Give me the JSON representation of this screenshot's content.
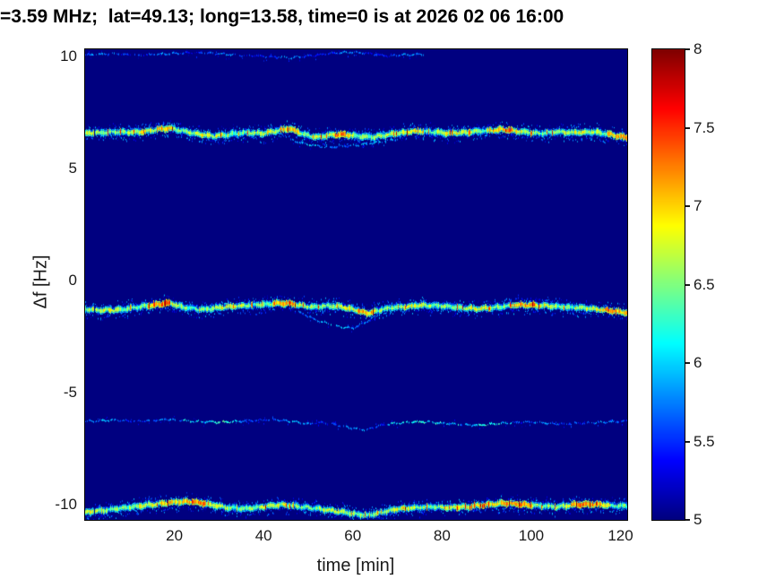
{
  "chart_data": {
    "type": "heatmap",
    "title": "=3.59 MHz;  lat=49.13; long=13.58, time=0 is at 2026 02 06 16:00",
    "xlabel": "time [min]",
    "ylabel": "Δf [Hz]",
    "xlim": [
      0,
      121.5
    ],
    "ylim": [
      -10.7,
      10.3
    ],
    "xticks": [
      20,
      40,
      60,
      80,
      100,
      120
    ],
    "yticks": [
      10,
      5,
      0,
      -5,
      -10
    ],
    "grid": false,
    "background_value": 5.0,
    "colorbar": {
      "clim": [
        5,
        8
      ],
      "ticks": [
        8,
        7.5,
        7,
        6.5,
        6,
        5.5,
        5
      ],
      "colormap": "jet",
      "position": "right"
    },
    "traces": [
      {
        "name": "doppler-trace-plus10Hz-faint",
        "style": "faint",
        "base": 5.6,
        "var": 0.45,
        "gap": 0.3,
        "points": [
          [
            0,
            10.05
          ],
          [
            6,
            10.1
          ],
          [
            12,
            10.03
          ],
          [
            18,
            10.1
          ],
          [
            24,
            10.15
          ],
          [
            30,
            10.1
          ],
          [
            36,
            10.02
          ],
          [
            42,
            9.96
          ],
          [
            46,
            9.92
          ],
          [
            50,
            10.0
          ],
          [
            55,
            10.12
          ],
          [
            60,
            10.18
          ],
          [
            64,
            10.1
          ],
          [
            68,
            10.0
          ],
          [
            72,
            10.05
          ],
          [
            76,
            10.08
          ]
        ]
      },
      {
        "name": "doppler-trace-plus6.5Hz-main",
        "style": "strong",
        "base": 6.55,
        "var": 0.7,
        "gap": 0,
        "hot": [
          [
            16,
            20
          ],
          [
            44,
            48
          ],
          [
            56,
            60
          ],
          [
            72,
            76
          ],
          [
            90,
            96
          ],
          [
            117,
            121.5
          ]
        ],
        "hot_boost": 0.38,
        "points": [
          [
            0,
            6.55
          ],
          [
            4,
            6.6
          ],
          [
            8,
            6.62
          ],
          [
            12,
            6.6
          ],
          [
            16,
            6.72
          ],
          [
            19,
            6.78
          ],
          [
            22,
            6.65
          ],
          [
            26,
            6.5
          ],
          [
            29,
            6.42
          ],
          [
            32,
            6.5
          ],
          [
            36,
            6.58
          ],
          [
            40,
            6.55
          ],
          [
            44,
            6.72
          ],
          [
            46,
            6.75
          ],
          [
            49,
            6.5
          ],
          [
            52,
            6.38
          ],
          [
            55,
            6.48
          ],
          [
            58,
            6.5
          ],
          [
            61,
            6.42
          ],
          [
            64,
            6.38
          ],
          [
            67,
            6.45
          ],
          [
            70,
            6.55
          ],
          [
            74,
            6.65
          ],
          [
            78,
            6.62
          ],
          [
            82,
            6.55
          ],
          [
            86,
            6.6
          ],
          [
            90,
            6.68
          ],
          [
            94,
            6.72
          ],
          [
            98,
            6.62
          ],
          [
            102,
            6.55
          ],
          [
            106,
            6.62
          ],
          [
            110,
            6.58
          ],
          [
            114,
            6.62
          ],
          [
            118,
            6.5
          ],
          [
            121.5,
            6.35
          ]
        ]
      },
      {
        "name": "doppler-branch-plus6Hz-faint",
        "style": "faint",
        "base": 5.8,
        "var": 0.5,
        "gap": 0.3,
        "points": [
          [
            46,
            6.25
          ],
          [
            50,
            6.05
          ],
          [
            54,
            5.92
          ],
          [
            58,
            5.98
          ],
          [
            62,
            6.05
          ],
          [
            66,
            6.18
          ],
          [
            70,
            6.3
          ]
        ]
      },
      {
        "name": "doppler-trace-minus1.2Hz-main",
        "style": "strong",
        "base": 6.55,
        "var": 0.7,
        "gap": 0,
        "hot": [
          [
            14,
            19
          ],
          [
            42,
            47
          ],
          [
            61,
            65
          ],
          [
            95,
            101
          ],
          [
            116,
            121.5
          ]
        ],
        "hot_boost": 0.38,
        "points": [
          [
            0,
            -1.3
          ],
          [
            4,
            -1.35
          ],
          [
            8,
            -1.32
          ],
          [
            12,
            -1.2
          ],
          [
            16,
            -1.08
          ],
          [
            19,
            -1.02
          ],
          [
            22,
            -1.22
          ],
          [
            26,
            -1.32
          ],
          [
            30,
            -1.22
          ],
          [
            34,
            -1.15
          ],
          [
            38,
            -1.1
          ],
          [
            42,
            -1.05
          ],
          [
            45,
            -1.02
          ],
          [
            48,
            -1.12
          ],
          [
            51,
            -1.2
          ],
          [
            54,
            -1.15
          ],
          [
            57,
            -1.18
          ],
          [
            60,
            -1.3
          ],
          [
            63,
            -1.48
          ],
          [
            66,
            -1.35
          ],
          [
            69,
            -1.22
          ],
          [
            72,
            -1.18
          ],
          [
            76,
            -1.12
          ],
          [
            80,
            -1.15
          ],
          [
            84,
            -1.22
          ],
          [
            88,
            -1.28
          ],
          [
            92,
            -1.22
          ],
          [
            96,
            -1.12
          ],
          [
            100,
            -1.1
          ],
          [
            104,
            -1.15
          ],
          [
            108,
            -1.2
          ],
          [
            112,
            -1.25
          ],
          [
            116,
            -1.32
          ],
          [
            121.5,
            -1.45
          ]
        ]
      },
      {
        "name": "doppler-branch-minus2Hz-faint",
        "style": "faint",
        "base": 5.8,
        "var": 0.5,
        "gap": 0.3,
        "points": [
          [
            48,
            -1.45
          ],
          [
            52,
            -1.8
          ],
          [
            56,
            -2.05
          ],
          [
            60,
            -2.15
          ],
          [
            63,
            -1.85
          ],
          [
            66,
            -1.5
          ]
        ]
      },
      {
        "name": "doppler-fuzz-minus0.8Hz-faint",
        "style": "faint",
        "base": 5.5,
        "var": 0.4,
        "gap": 0.5,
        "points": [
          [
            94,
            -0.9
          ],
          [
            98,
            -0.82
          ],
          [
            102,
            -0.88
          ],
          [
            105,
            -0.95
          ]
        ]
      },
      {
        "name": "doppler-trace-minus6.3Hz-faint",
        "style": "faint",
        "base": 5.65,
        "var": 0.5,
        "gap": 0.25,
        "hot": [
          [
            22,
            34
          ],
          [
            68,
            84
          ],
          [
            88,
            96
          ]
        ],
        "hot_boost": 0.3,
        "points": [
          [
            0,
            -6.3
          ],
          [
            6,
            -6.25
          ],
          [
            12,
            -6.3
          ],
          [
            18,
            -6.22
          ],
          [
            24,
            -6.3
          ],
          [
            30,
            -6.35
          ],
          [
            36,
            -6.28
          ],
          [
            42,
            -6.22
          ],
          [
            46,
            -6.3
          ],
          [
            50,
            -6.42
          ],
          [
            53,
            -6.35
          ],
          [
            56,
            -6.45
          ],
          [
            60,
            -6.62
          ],
          [
            63,
            -6.68
          ],
          [
            66,
            -6.5
          ],
          [
            70,
            -6.38
          ],
          [
            76,
            -6.32
          ],
          [
            82,
            -6.42
          ],
          [
            88,
            -6.48
          ],
          [
            94,
            -6.38
          ],
          [
            100,
            -6.32
          ],
          [
            106,
            -6.42
          ],
          [
            112,
            -6.38
          ],
          [
            118,
            -6.32
          ],
          [
            121.5,
            -6.3
          ]
        ]
      },
      {
        "name": "doppler-trace-minus10Hz-main",
        "style": "strong",
        "base": 6.55,
        "var": 0.7,
        "gap": 0,
        "hot": [
          [
            17,
            27
          ],
          [
            87,
            100
          ],
          [
            109,
            118
          ]
        ],
        "hot_boost": 0.38,
        "points": [
          [
            0,
            -10.35
          ],
          [
            4,
            -10.28
          ],
          [
            8,
            -10.18
          ],
          [
            12,
            -10.08
          ],
          [
            16,
            -10.0
          ],
          [
            20,
            -9.9
          ],
          [
            24,
            -9.88
          ],
          [
            28,
            -10.02
          ],
          [
            32,
            -10.15
          ],
          [
            36,
            -10.2
          ],
          [
            40,
            -10.12
          ],
          [
            44,
            -10.02
          ],
          [
            48,
            -10.1
          ],
          [
            52,
            -10.2
          ],
          [
            56,
            -10.3
          ],
          [
            60,
            -10.42
          ],
          [
            63,
            -10.5
          ],
          [
            66,
            -10.38
          ],
          [
            70,
            -10.22
          ],
          [
            74,
            -10.15
          ],
          [
            78,
            -10.12
          ],
          [
            82,
            -10.15
          ],
          [
            86,
            -10.12
          ],
          [
            90,
            -10.02
          ],
          [
            94,
            -9.96
          ],
          [
            98,
            -10.0
          ],
          [
            102,
            -10.08
          ],
          [
            106,
            -10.12
          ],
          [
            110,
            -10.02
          ],
          [
            114,
            -10.0
          ],
          [
            118,
            -10.05
          ],
          [
            121.5,
            -10.08
          ]
        ]
      }
    ]
  }
}
